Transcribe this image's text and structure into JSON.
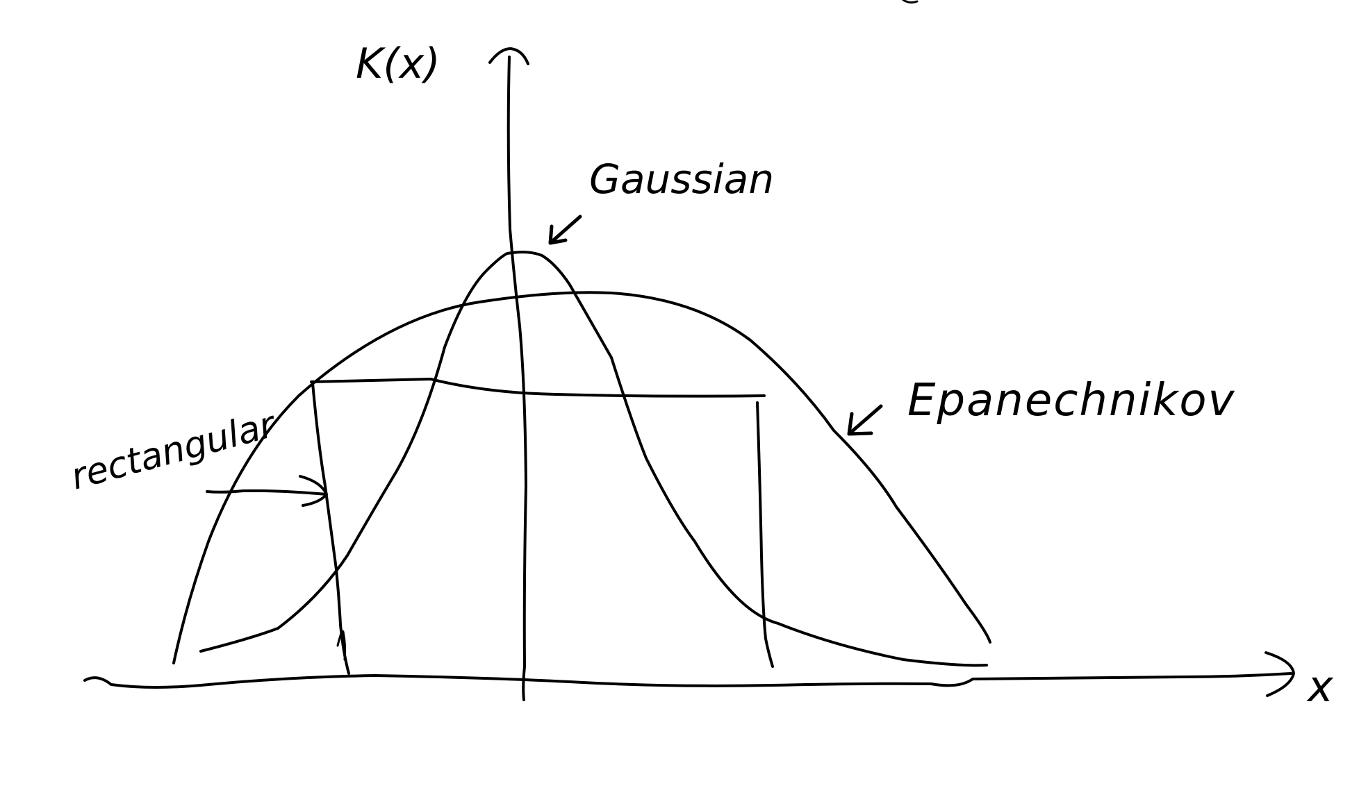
{
  "axes": {
    "y_label": "K(x)",
    "x_label": "x"
  },
  "curves": {
    "gaussian": {
      "label": "Gaussian"
    },
    "epanechnikov": {
      "label": "Epanechnikov"
    },
    "rectangular": {
      "label": "rectangular"
    }
  }
}
